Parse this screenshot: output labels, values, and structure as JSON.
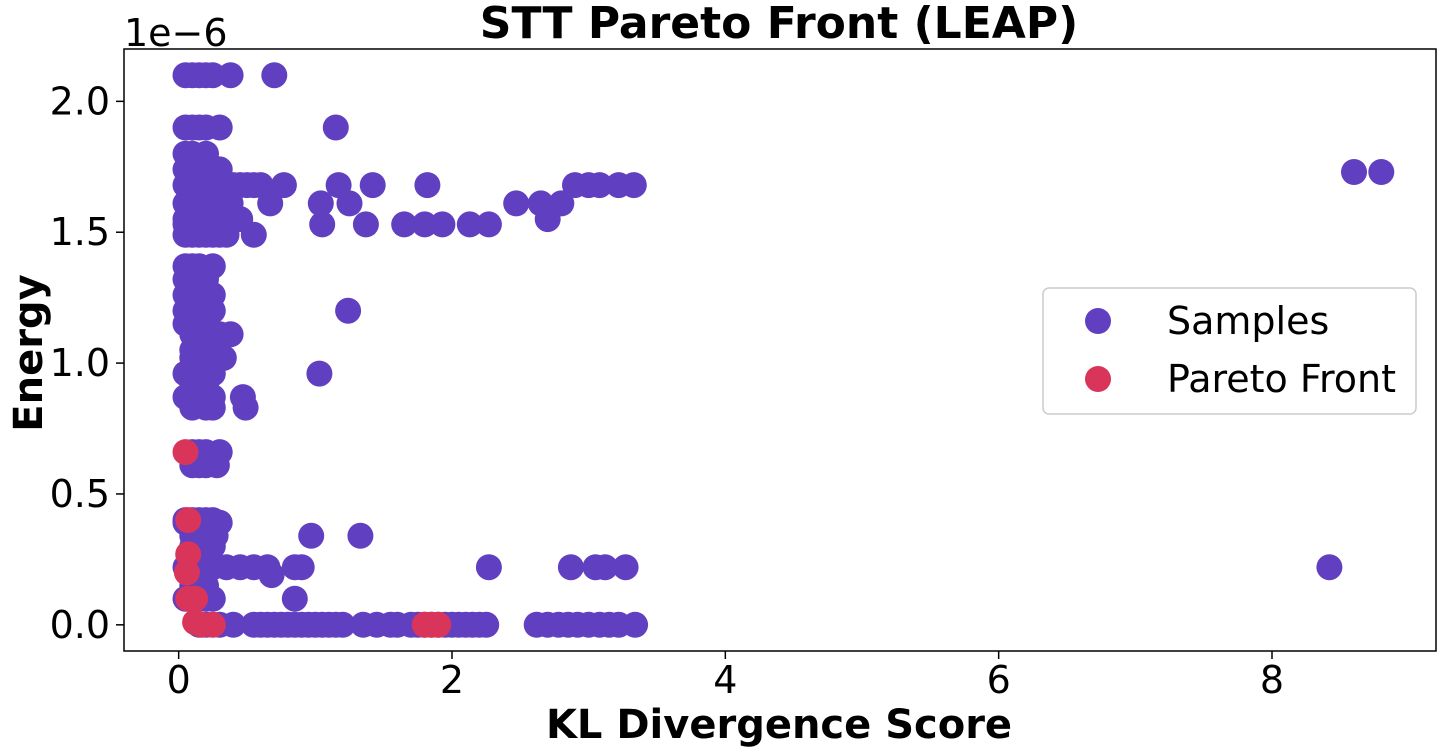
{
  "chart_data": {
    "type": "scatter",
    "title": "STT Pareto Front (LEAP)",
    "xlabel": "KL Divergence Score",
    "ylabel": "Energy",
    "y_offset_label": "1e−6",
    "xlim": [
      -0.4,
      9.2
    ],
    "ylim": [
      -0.1,
      2.2
    ],
    "y_scale_note": "values in units of 1e-6",
    "x_ticks": [
      0,
      2,
      4,
      6,
      8
    ],
    "x_tick_labels": [
      "0",
      "2",
      "4",
      "6",
      "8"
    ],
    "y_ticks": [
      0.0,
      0.5,
      1.0,
      1.5,
      2.0
    ],
    "y_tick_labels": [
      "0.0",
      "0.5",
      "1.0",
      "1.5",
      "2.0"
    ],
    "grid": false,
    "legend_position": "center-right",
    "colors": {
      "samples": "#6040c0",
      "pareto": "#d9345a"
    },
    "series": [
      {
        "name": "Samples",
        "points": [
          [
            0.05,
            2.1
          ],
          [
            0.1,
            2.1
          ],
          [
            0.15,
            2.1
          ],
          [
            0.2,
            2.1
          ],
          [
            0.25,
            2.1
          ],
          [
            0.38,
            2.1
          ],
          [
            0.7,
            2.1
          ],
          [
            0.05,
            1.9
          ],
          [
            0.1,
            1.9
          ],
          [
            0.15,
            1.9
          ],
          [
            0.2,
            1.9
          ],
          [
            0.3,
            1.9
          ],
          [
            1.15,
            1.9
          ],
          [
            0.05,
            1.8
          ],
          [
            0.1,
            1.8
          ],
          [
            0.2,
            1.8
          ],
          [
            0.05,
            1.74
          ],
          [
            0.1,
            1.74
          ],
          [
            0.2,
            1.74
          ],
          [
            0.3,
            1.74
          ],
          [
            0.05,
            1.68
          ],
          [
            0.1,
            1.68
          ],
          [
            0.15,
            1.68
          ],
          [
            0.2,
            1.68
          ],
          [
            0.25,
            1.68
          ],
          [
            0.3,
            1.68
          ],
          [
            0.35,
            1.68
          ],
          [
            0.4,
            1.68
          ],
          [
            0.45,
            1.68
          ],
          [
            0.5,
            1.68
          ],
          [
            0.55,
            1.68
          ],
          [
            0.6,
            1.68
          ],
          [
            0.77,
            1.68
          ],
          [
            1.17,
            1.68
          ],
          [
            1.42,
            1.68
          ],
          [
            1.82,
            1.68
          ],
          [
            2.9,
            1.68
          ],
          [
            3.0,
            1.68
          ],
          [
            3.08,
            1.68
          ],
          [
            3.22,
            1.68
          ],
          [
            3.33,
            1.68
          ],
          [
            0.05,
            1.61
          ],
          [
            0.1,
            1.61
          ],
          [
            0.2,
            1.61
          ],
          [
            0.3,
            1.61
          ],
          [
            0.38,
            1.61
          ],
          [
            0.67,
            1.61
          ],
          [
            1.04,
            1.61
          ],
          [
            1.25,
            1.61
          ],
          [
            2.47,
            1.61
          ],
          [
            2.65,
            1.61
          ],
          [
            2.8,
            1.61
          ],
          [
            0.05,
            1.55
          ],
          [
            0.15,
            1.55
          ],
          [
            0.25,
            1.55
          ],
          [
            0.35,
            1.55
          ],
          [
            0.45,
            1.55
          ],
          [
            2.7,
            1.55
          ],
          [
            0.05,
            1.53
          ],
          [
            0.1,
            1.53
          ],
          [
            0.2,
            1.53
          ],
          [
            0.3,
            1.53
          ],
          [
            1.05,
            1.53
          ],
          [
            1.37,
            1.53
          ],
          [
            1.65,
            1.53
          ],
          [
            1.8,
            1.53
          ],
          [
            1.93,
            1.53
          ],
          [
            2.13,
            1.53
          ],
          [
            2.27,
            1.53
          ],
          [
            0.05,
            1.49
          ],
          [
            0.1,
            1.49
          ],
          [
            0.15,
            1.49
          ],
          [
            0.2,
            1.49
          ],
          [
            0.25,
            1.49
          ],
          [
            0.3,
            1.49
          ],
          [
            0.35,
            1.49
          ],
          [
            0.55,
            1.49
          ],
          [
            0.05,
            1.37
          ],
          [
            0.1,
            1.37
          ],
          [
            0.15,
            1.37
          ],
          [
            0.25,
            1.37
          ],
          [
            0.05,
            1.32
          ],
          [
            0.1,
            1.32
          ],
          [
            0.2,
            1.32
          ],
          [
            0.05,
            1.26
          ],
          [
            0.1,
            1.26
          ],
          [
            0.2,
            1.26
          ],
          [
            0.25,
            1.26
          ],
          [
            0.05,
            1.2
          ],
          [
            0.1,
            1.2
          ],
          [
            0.15,
            1.2
          ],
          [
            0.25,
            1.2
          ],
          [
            1.24,
            1.2
          ],
          [
            0.05,
            1.15
          ],
          [
            0.15,
            1.15
          ],
          [
            0.2,
            1.15
          ],
          [
            0.1,
            1.11
          ],
          [
            0.15,
            1.11
          ],
          [
            0.2,
            1.11
          ],
          [
            0.3,
            1.11
          ],
          [
            0.38,
            1.11
          ],
          [
            0.1,
            1.05
          ],
          [
            0.2,
            1.05
          ],
          [
            0.1,
            1.02
          ],
          [
            0.15,
            1.02
          ],
          [
            0.25,
            1.02
          ],
          [
            0.33,
            1.02
          ],
          [
            0.05,
            0.96
          ],
          [
            0.15,
            0.96
          ],
          [
            0.2,
            0.96
          ],
          [
            0.25,
            0.96
          ],
          [
            1.03,
            0.96
          ],
          [
            0.1,
            0.91
          ],
          [
            0.2,
            0.91
          ],
          [
            0.05,
            0.87
          ],
          [
            0.1,
            0.87
          ],
          [
            0.15,
            0.87
          ],
          [
            0.2,
            0.87
          ],
          [
            0.25,
            0.87
          ],
          [
            0.47,
            0.87
          ],
          [
            0.1,
            0.83
          ],
          [
            0.2,
            0.83
          ],
          [
            0.25,
            0.83
          ],
          [
            0.49,
            0.83
          ],
          [
            0.1,
            0.66
          ],
          [
            0.15,
            0.66
          ],
          [
            0.2,
            0.66
          ],
          [
            0.3,
            0.66
          ],
          [
            0.1,
            0.61
          ],
          [
            0.15,
            0.61
          ],
          [
            0.2,
            0.61
          ],
          [
            0.28,
            0.61
          ],
          [
            0.05,
            0.4
          ],
          [
            0.1,
            0.4
          ],
          [
            0.15,
            0.4
          ],
          [
            0.2,
            0.4
          ],
          [
            0.25,
            0.4
          ],
          [
            0.05,
            0.39
          ],
          [
            0.3,
            0.39
          ],
          [
            0.1,
            0.34
          ],
          [
            0.2,
            0.34
          ],
          [
            0.27,
            0.34
          ],
          [
            0.97,
            0.34
          ],
          [
            1.33,
            0.34
          ],
          [
            0.1,
            0.3
          ],
          [
            0.15,
            0.3
          ],
          [
            0.25,
            0.3
          ],
          [
            0.1,
            0.26
          ],
          [
            0.2,
            0.26
          ],
          [
            0.05,
            0.22
          ],
          [
            0.1,
            0.22
          ],
          [
            0.15,
            0.22
          ],
          [
            0.25,
            0.22
          ],
          [
            0.35,
            0.22
          ],
          [
            0.45,
            0.22
          ],
          [
            0.55,
            0.22
          ],
          [
            0.65,
            0.22
          ],
          [
            0.68,
            0.19
          ],
          [
            0.85,
            0.22
          ],
          [
            0.9,
            0.22
          ],
          [
            2.27,
            0.22
          ],
          [
            2.87,
            0.22
          ],
          [
            3.05,
            0.22
          ],
          [
            3.12,
            0.22
          ],
          [
            3.27,
            0.22
          ],
          [
            8.42,
            0.22
          ],
          [
            0.1,
            0.15
          ],
          [
            0.15,
            0.15
          ],
          [
            0.2,
            0.15
          ],
          [
            0.05,
            0.1
          ],
          [
            0.1,
            0.1
          ],
          [
            0.2,
            0.1
          ],
          [
            0.25,
            0.1
          ],
          [
            0.85,
            0.1
          ],
          [
            0.15,
            0.0
          ],
          [
            0.2,
            0.0
          ],
          [
            0.3,
            0.0
          ],
          [
            0.4,
            0.0
          ],
          [
            0.55,
            0.0
          ],
          [
            0.6,
            0.0
          ],
          [
            0.65,
            0.0
          ],
          [
            0.7,
            0.0
          ],
          [
            0.75,
            0.0
          ],
          [
            0.8,
            0.0
          ],
          [
            0.85,
            0.0
          ],
          [
            0.9,
            0.0
          ],
          [
            0.95,
            0.0
          ],
          [
            1.0,
            0.0
          ],
          [
            1.05,
            0.0
          ],
          [
            1.1,
            0.0
          ],
          [
            1.15,
            0.0
          ],
          [
            1.2,
            0.0
          ],
          [
            1.35,
            0.0
          ],
          [
            1.45,
            0.0
          ],
          [
            1.55,
            0.0
          ],
          [
            1.6,
            0.0
          ],
          [
            1.7,
            0.0
          ],
          [
            1.75,
            0.0
          ],
          [
            1.8,
            0.0
          ],
          [
            1.85,
            0.0
          ],
          [
            1.9,
            0.0
          ],
          [
            1.95,
            0.0
          ],
          [
            2.0,
            0.0
          ],
          [
            2.05,
            0.0
          ],
          [
            2.1,
            0.0
          ],
          [
            2.15,
            0.0
          ],
          [
            2.2,
            0.0
          ],
          [
            2.25,
            0.0
          ],
          [
            2.62,
            0.0
          ],
          [
            2.7,
            0.0
          ],
          [
            2.78,
            0.0
          ],
          [
            2.85,
            0.0
          ],
          [
            2.92,
            0.0
          ],
          [
            3.0,
            0.0
          ],
          [
            3.08,
            0.0
          ],
          [
            3.15,
            0.0
          ],
          [
            3.22,
            0.0
          ],
          [
            3.34,
            0.0
          ],
          [
            8.6,
            1.73
          ],
          [
            8.8,
            1.73
          ]
        ]
      },
      {
        "name": "Pareto Front",
        "points": [
          [
            0.05,
            0.66
          ],
          [
            0.07,
            0.4
          ],
          [
            0.07,
            0.27
          ],
          [
            0.06,
            0.2
          ],
          [
            0.07,
            0.1
          ],
          [
            0.12,
            0.1
          ],
          [
            0.12,
            0.01
          ],
          [
            0.17,
            0.0
          ],
          [
            0.25,
            0.0
          ],
          [
            1.8,
            0.0
          ],
          [
            1.85,
            0.0
          ],
          [
            1.9,
            0.0
          ]
        ]
      }
    ]
  }
}
